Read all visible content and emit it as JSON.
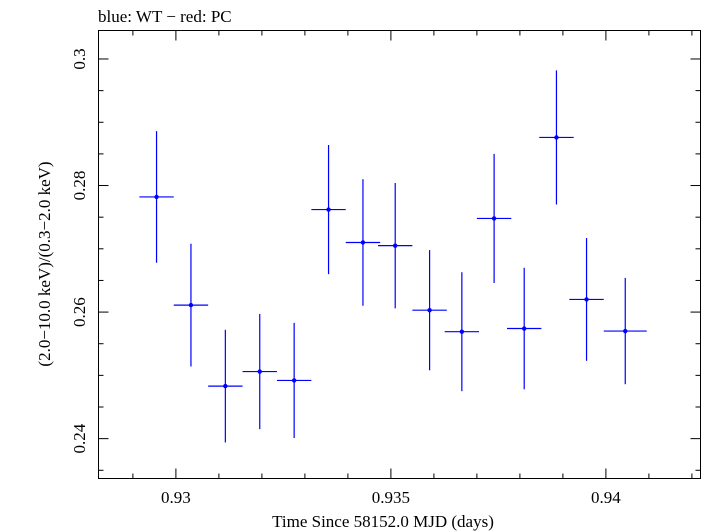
{
  "chart_data": {
    "type": "scatter",
    "title": "blue: WT − red: PC",
    "xlabel": "Time Since 58152.0 MJD (days)",
    "ylabel": "(2.0−10.0 keV)/(0.3−2.0 keV)",
    "xlim": [
      0.9282,
      0.9422
    ],
    "ylim": [
      0.2337,
      0.3045
    ],
    "x_ticks": [
      0.93,
      0.935,
      0.94
    ],
    "x_tick_labels": [
      "0.93",
      "0.935",
      "0.94"
    ],
    "x_minor_step": 0.001,
    "y_ticks": [
      0.24,
      0.26,
      0.28,
      0.3
    ],
    "y_tick_labels": [
      "0.24",
      "0.26",
      "0.28",
      "0.3"
    ],
    "y_minor_step": 0.005,
    "grid": false,
    "series": [
      {
        "name": "WT",
        "color": "#0000ff",
        "points": [
          {
            "x": 0.92955,
            "xerr": 0.0004,
            "y": 0.2782,
            "yerr": 0.0104
          },
          {
            "x": 0.93035,
            "xerr": 0.0004,
            "y": 0.2611,
            "yerr": 0.0097
          },
          {
            "x": 0.93115,
            "xerr": 0.0004,
            "y": 0.2483,
            "yerr": 0.0089
          },
          {
            "x": 0.93195,
            "xerr": 0.0004,
            "y": 0.2506,
            "yerr": 0.0091
          },
          {
            "x": 0.93275,
            "xerr": 0.0004,
            "y": 0.2492,
            "yerr": 0.0091
          },
          {
            "x": 0.93355,
            "xerr": 0.0004,
            "y": 0.2762,
            "yerr": 0.0102
          },
          {
            "x": 0.93435,
            "xerr": 0.0004,
            "y": 0.271,
            "yerr": 0.01
          },
          {
            "x": 0.9351,
            "xerr": 0.0004,
            "y": 0.2705,
            "yerr": 0.0099
          },
          {
            "x": 0.9359,
            "xerr": 0.0004,
            "y": 0.2603,
            "yerr": 0.0095
          },
          {
            "x": 0.93665,
            "xerr": 0.0004,
            "y": 0.2569,
            "yerr": 0.0094
          },
          {
            "x": 0.9374,
            "xerr": 0.0004,
            "y": 0.2748,
            "yerr": 0.0102
          },
          {
            "x": 0.9381,
            "xerr": 0.0004,
            "y": 0.2574,
            "yerr": 0.0096
          },
          {
            "x": 0.93885,
            "xerr": 0.0004,
            "y": 0.2876,
            "yerr": 0.0106
          },
          {
            "x": 0.93955,
            "xerr": 0.0004,
            "y": 0.262,
            "yerr": 0.0097
          },
          {
            "x": 0.94045,
            "xerr": 0.0005,
            "y": 0.257,
            "yerr": 0.0084
          }
        ]
      }
    ]
  }
}
